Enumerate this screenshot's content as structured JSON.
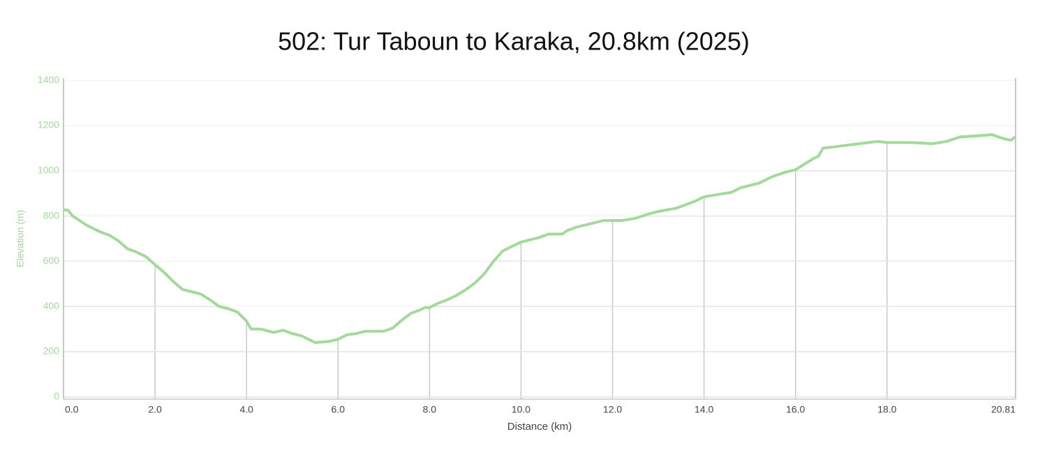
{
  "chart_data": {
    "type": "line",
    "title": "502: Tur Taboun to Karaka, 20.8km (2025)",
    "x_label": "Distance (km)",
    "y_label": "Elevation (m)",
    "color": "#a3d99b",
    "x": [
      0.0,
      0.1,
      0.2,
      0.5,
      0.8,
      1.0,
      1.2,
      1.4,
      1.6,
      1.8,
      2.0,
      2.2,
      2.4,
      2.6,
      2.8,
      3.0,
      3.2,
      3.4,
      3.6,
      3.8,
      4.0,
      4.1,
      4.3,
      4.6,
      4.8,
      5.0,
      5.2,
      5.5,
      5.8,
      6.0,
      6.2,
      6.4,
      6.6,
      6.8,
      7.0,
      7.2,
      7.4,
      7.6,
      7.8,
      7.9,
      8.0,
      8.2,
      8.4,
      8.6,
      8.8,
      9.0,
      9.2,
      9.4,
      9.6,
      9.8,
      10.0,
      10.2,
      10.4,
      10.6,
      10.9,
      11.0,
      11.2,
      11.5,
      11.8,
      12.0,
      12.2,
      12.5,
      12.8,
      13.0,
      13.4,
      13.8,
      14.0,
      14.3,
      14.6,
      14.8,
      15.2,
      15.5,
      15.8,
      16.0,
      16.2,
      16.4,
      16.5,
      16.6,
      16.8,
      17.0,
      17.4,
      17.8,
      18.0,
      18.5,
      19.0,
      19.3,
      19.6,
      20.0,
      20.3,
      20.5,
      20.7,
      20.81
    ],
    "values": [
      828,
      825,
      800,
      760,
      730,
      715,
      690,
      655,
      640,
      620,
      585,
      550,
      510,
      475,
      465,
      455,
      430,
      400,
      390,
      375,
      335,
      300,
      300,
      285,
      295,
      280,
      270,
      240,
      245,
      255,
      275,
      280,
      290,
      290,
      290,
      305,
      340,
      370,
      385,
      395,
      395,
      415,
      430,
      450,
      475,
      505,
      545,
      600,
      645,
      665,
      685,
      695,
      705,
      720,
      720,
      735,
      750,
      765,
      780,
      780,
      780,
      790,
      810,
      820,
      835,
      865,
      885,
      895,
      905,
      925,
      945,
      975,
      995,
      1005,
      1030,
      1055,
      1065,
      1100,
      1105,
      1110,
      1120,
      1130,
      1125,
      1125,
      1120,
      1130,
      1150,
      1155,
      1160,
      1145,
      1135,
      1150
    ],
    "xlim": [
      0,
      20.81
    ],
    "ylim": [
      -10,
      1410
    ],
    "xticks": [
      {
        "value": 0,
        "label": "0.0"
      },
      {
        "value": 2,
        "label": "2.0"
      },
      {
        "value": 4,
        "label": "4.0"
      },
      {
        "value": 6,
        "label": "6.0"
      },
      {
        "value": 8,
        "label": "8.0"
      },
      {
        "value": 10,
        "label": "10.0"
      },
      {
        "value": 12,
        "label": "12.0"
      },
      {
        "value": 14,
        "label": "14.0"
      },
      {
        "value": 16,
        "label": "16.0"
      },
      {
        "value": 18,
        "label": "18.0"
      },
      20.81
    ],
    "yticks": [
      0,
      200,
      400,
      600,
      800,
      1000,
      1200,
      1400
    ],
    "grid": true
  }
}
